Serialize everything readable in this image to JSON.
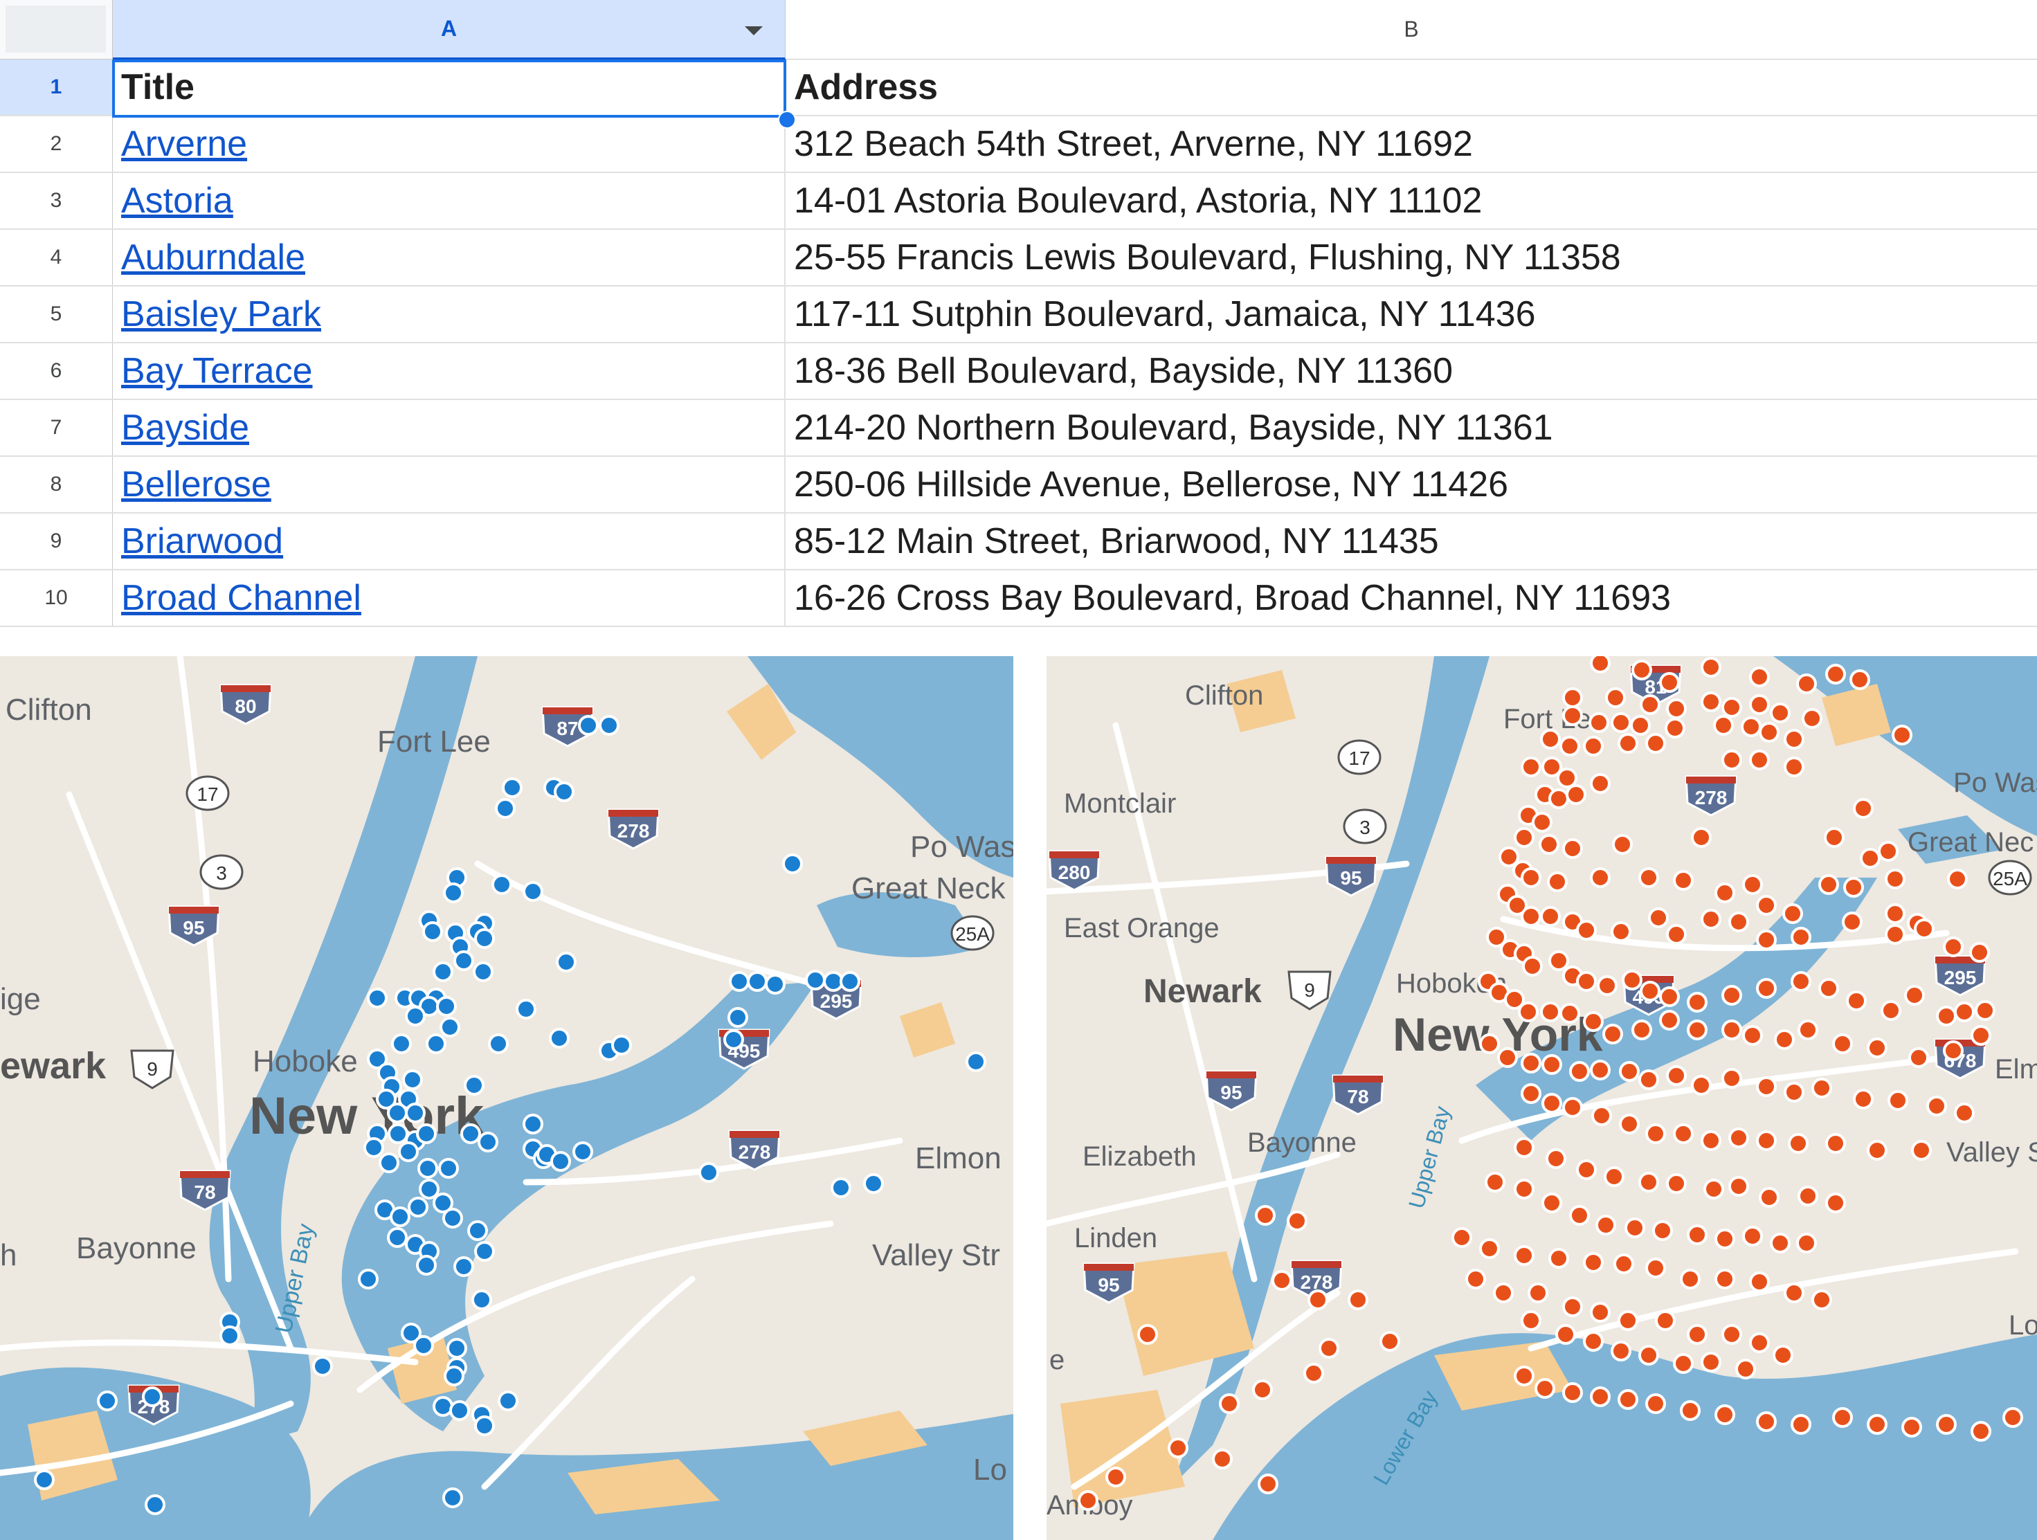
{
  "spreadsheet": {
    "columns": [
      "A",
      "B"
    ],
    "header": {
      "row_number": "1",
      "title": "Title",
      "address": "Address"
    },
    "rows": [
      {
        "n": "2",
        "title": "Arverne",
        "address": "312 Beach 54th Street, Arverne, NY 11692"
      },
      {
        "n": "3",
        "title": "Astoria",
        "address": "14-01 Astoria Boulevard, Astoria, NY 11102"
      },
      {
        "n": "4",
        "title": "Auburndale",
        "address": "25-55 Francis Lewis Boulevard, Flushing, NY 11358"
      },
      {
        "n": "5",
        "title": "Baisley Park",
        "address": "117-11 Sutphin Boulevard, Jamaica, NY 11436"
      },
      {
        "n": "6",
        "title": "Bay Terrace",
        "address": "18-36 Bell Boulevard, Bayside, NY 11360"
      },
      {
        "n": "7",
        "title": "Bayside",
        "address": "214-20 Northern Boulevard, Bayside, NY 11361"
      },
      {
        "n": "8",
        "title": "Bellerose",
        "address": "250-06 Hillside Avenue, Bellerose, NY 11426"
      },
      {
        "n": "9",
        "title": "Briarwood",
        "address": "85-12 Main Street, Briarwood, NY 11435"
      },
      {
        "n": "10",
        "title": "Broad Channel",
        "address": "16-26 Cross Bay Boulevard, Broad Channel, NY 11693"
      }
    ]
  },
  "maps": {
    "left": {
      "marker_color": "#1a7fd0",
      "place_labels": [
        "Clifton",
        "Fort Lee",
        "Hoboke",
        "New York",
        "Bayonne",
        "Great Neck",
        "Elmon",
        "Valley Str",
        "Po Washin",
        "ige",
        "ewark",
        "h",
        "Upper Bay",
        "Lo"
      ],
      "route_shields": [
        "80",
        "87",
        "17",
        "3",
        "278",
        "95",
        "25A",
        "495",
        "295",
        "9",
        "78",
        "278",
        "278"
      ]
    },
    "right": {
      "marker_color": "#e8501a",
      "place_labels": [
        "Clifton",
        "Fort Lee",
        "Montclair",
        "East Orange",
        "Newark",
        "Hoboken",
        "New York",
        "Elizabeth",
        "Bayonne",
        "Linden",
        "Great Nec",
        "Po Washi",
        "Elmon",
        "Valley St",
        "Upper Bay",
        "Lower Bay",
        "Amboy",
        "Lo",
        "e"
      ],
      "route_shields": [
        "17",
        "3",
        "280",
        "95",
        "9",
        "81",
        "278",
        "495",
        "95",
        "78",
        "278",
        "95",
        "25A",
        "295",
        "678"
      ]
    },
    "colors": {
      "water": "#7fb4d6",
      "land": "#ede8e0",
      "park": "#f5cd92",
      "road": "#ffffff"
    }
  }
}
